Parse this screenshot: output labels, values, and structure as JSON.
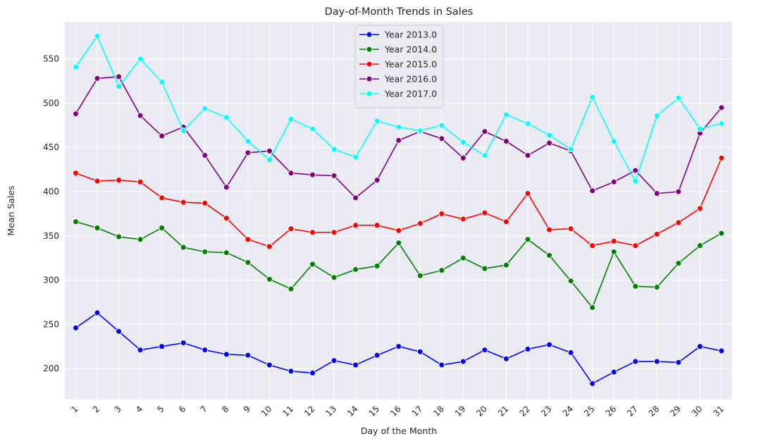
{
  "chart_data": {
    "type": "line",
    "title": "Day-of-Month Trends in Sales",
    "xlabel": "Day of the Month",
    "ylabel": "Mean Sales",
    "x": [
      1,
      2,
      3,
      4,
      5,
      6,
      7,
      8,
      9,
      10,
      11,
      12,
      13,
      14,
      15,
      16,
      17,
      18,
      19,
      20,
      21,
      22,
      23,
      24,
      25,
      26,
      27,
      28,
      29,
      30,
      31
    ],
    "x_tick_labels": [
      "1",
      "2",
      "3",
      "4",
      "5",
      "6",
      "7",
      "8",
      "9",
      "10",
      "11",
      "12",
      "13",
      "14",
      "15",
      "16",
      "17",
      "18",
      "19",
      "20",
      "21",
      "22",
      "23",
      "24",
      "25",
      "26",
      "27",
      "28",
      "29",
      "30",
      "31"
    ],
    "ylim": [
      165,
      592
    ],
    "y_ticks": [
      200,
      250,
      300,
      350,
      400,
      450,
      500,
      550
    ],
    "y_tick_labels": [
      "200",
      "250",
      "300",
      "350",
      "400",
      "450",
      "500",
      "550"
    ],
    "grid": true,
    "legend_position": "top-center",
    "background_color": "#eaeaf2",
    "series": [
      {
        "name": "Year 2013.0",
        "color": "#0000ff",
        "values": [
          246,
          263,
          242,
          221,
          225,
          229,
          221,
          216,
          215,
          204,
          197,
          195,
          209,
          204,
          215,
          225,
          219,
          204,
          208,
          221,
          211,
          222,
          227,
          218,
          183,
          196,
          208,
          208,
          207,
          225,
          220
        ]
      },
      {
        "name": "Year 2014.0",
        "color": "#008000",
        "values": [
          366,
          359,
          349,
          346,
          359,
          337,
          332,
          331,
          320,
          301,
          290,
          318,
          303,
          312,
          316,
          342,
          305,
          311,
          325,
          313,
          317,
          346,
          328,
          299,
          269,
          332,
          293,
          292,
          319,
          339,
          353
        ]
      },
      {
        "name": "Year 2015.0",
        "color": "#ff0000",
        "values": [
          421,
          412,
          413,
          411,
          393,
          388,
          387,
          370,
          346,
          338,
          358,
          354,
          354,
          362,
          362,
          356,
          364,
          375,
          369,
          376,
          366,
          398,
          357,
          358,
          339,
          344,
          339,
          352,
          365,
          381,
          438
        ]
      },
      {
        "name": "Year 2016.0",
        "color": "#800080",
        "values": [
          488,
          528,
          530,
          486,
          463,
          473,
          441,
          405,
          444,
          446,
          421,
          419,
          418,
          393,
          413,
          458,
          468,
          460,
          438,
          468,
          457,
          441,
          455,
          446,
          401,
          411,
          424,
          398,
          400,
          466,
          495
        ]
      },
      {
        "name": "Year 2017.0",
        "color": "#00ffff",
        "values": [
          541,
          576,
          519,
          550,
          524,
          469,
          494,
          484,
          457,
          436,
          482,
          471,
          448,
          439,
          480,
          473,
          469,
          475,
          456,
          441,
          487,
          477,
          464,
          448,
          507,
          457,
          412,
          486,
          506,
          471,
          477
        ]
      }
    ]
  }
}
